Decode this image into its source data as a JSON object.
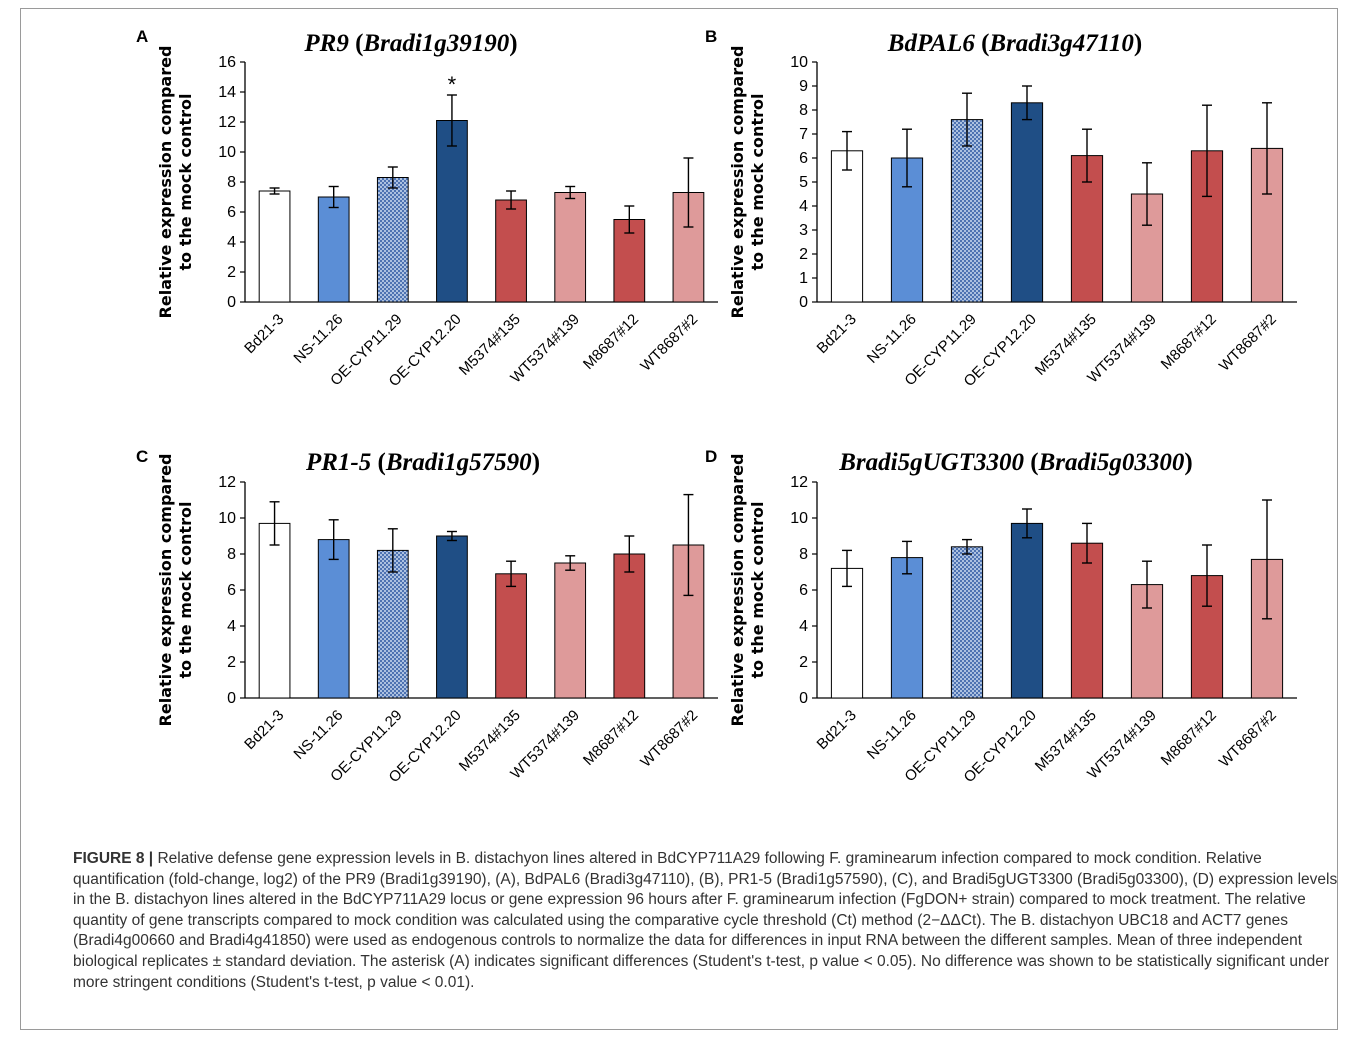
{
  "chart_data": [
    {
      "panel": "A",
      "type": "bar",
      "title_gene": "PR9",
      "title_locus": "Bradi1g39190",
      "ylabel_line1": "Relative expression compared",
      "ylabel_line2": "to the mock control",
      "ylim": [
        0,
        16
      ],
      "ytick_step": 2,
      "categories": [
        "Bd21-3",
        "NS-11.26",
        "OE-CYP11.29",
        "OE-CYP12.20",
        "M5374#135",
        "WT5374#139",
        "M8687#12",
        "WT8687#2"
      ],
      "values": [
        7.4,
        7.0,
        8.3,
        12.1,
        6.8,
        7.3,
        5.5,
        7.3
      ],
      "errors": [
        0.2,
        0.7,
        0.7,
        1.7,
        0.6,
        0.4,
        0.9,
        2.3
      ],
      "annotations": [
        {
          "category": "OE-CYP12.20",
          "text": "*"
        }
      ]
    },
    {
      "panel": "B",
      "type": "bar",
      "title_gene": "BdPAL6",
      "title_locus": "Bradi3g47110",
      "ylabel_line1": "Relative expression compared",
      "ylabel_line2": "to the mock control",
      "ylim": [
        0,
        10
      ],
      "ytick_step": 1,
      "categories": [
        "Bd21-3",
        "NS-11.26",
        "OE-CYP11.29",
        "OE-CYP12.20",
        "M5374#135",
        "WT5374#139",
        "M8687#12",
        "WT8687#2"
      ],
      "values": [
        6.3,
        6.0,
        7.6,
        8.3,
        6.1,
        4.5,
        6.3,
        6.4
      ],
      "errors": [
        0.8,
        1.2,
        1.1,
        0.7,
        1.1,
        1.3,
        1.9,
        1.9
      ],
      "annotations": []
    },
    {
      "panel": "C",
      "type": "bar",
      "title_gene": "PR1-5",
      "title_locus": "Bradi1g57590",
      "ylabel_line1": "Relative expression compared",
      "ylabel_line2": "to the mock control",
      "ylim": [
        0,
        12
      ],
      "ytick_step": 2,
      "categories": [
        "Bd21-3",
        "NS-11.26",
        "OE-CYP11.29",
        "OE-CYP12.20",
        "M5374#135",
        "WT5374#139",
        "M8687#12",
        "WT8687#2"
      ],
      "values": [
        9.7,
        8.8,
        8.2,
        9.0,
        6.9,
        7.5,
        8.0,
        8.5
      ],
      "errors": [
        1.2,
        1.1,
        1.2,
        0.25,
        0.7,
        0.4,
        1.0,
        2.8
      ],
      "annotations": []
    },
    {
      "panel": "D",
      "type": "bar",
      "title_gene": "Bradi5gUGT3300",
      "title_locus": "Bradi5g03300",
      "ylabel_line1": "Relative expression compared",
      "ylabel_line2": "to the mock control",
      "ylim": [
        0,
        12
      ],
      "ytick_step": 2,
      "categories": [
        "Bd21-3",
        "NS-11.26",
        "OE-CYP11.29",
        "OE-CYP12.20",
        "M5374#135",
        "WT5374#139",
        "M8687#12",
        "WT8687#2"
      ],
      "values": [
        7.2,
        7.8,
        8.4,
        9.7,
        8.6,
        6.3,
        6.8,
        7.7
      ],
      "errors": [
        1.0,
        0.9,
        0.4,
        0.8,
        1.1,
        1.3,
        1.7,
        3.3
      ],
      "annotations": []
    }
  ],
  "series_colors": {
    "Bd21-3": "#ffffff",
    "NS-11.26": "#5b8ed6",
    "OE-CYP11.29": "pattern-light-blue-crosshatch",
    "OE-CYP12.20": "#1f4e85",
    "M5374#135": "#c34e4e",
    "WT5374#139": "#de9a9a",
    "M8687#12": "#c34e4e",
    "WT8687#2": "#de9a9a"
  },
  "caption": {
    "label": "FIGURE 8 |",
    "text": " Relative defense gene expression levels in B. distachyon lines altered in BdCYP711A29 following F. graminearum infection compared to mock condition. Relative quantification (fold-change, log2) of the PR9 (Bradi1g39190), (A), BdPAL6 (Bradi3g47110), (B), PR1-5 (Bradi1g57590), (C), and Bradi5gUGT3300 (Bradi5g03300), (D) expression levels in the B. distachyon lines altered in the BdCYP711A29 locus or gene expression 96 hours after F. graminearum infection (FgDON+ strain) compared to mock treatment. The relative quantity of gene transcripts compared to mock condition was calculated using the comparative cycle threshold (Ct) method (2−ΔΔCt). The B. distachyon UBC18 and ACT7 genes (Bradi4g00660 and Bradi4g41850) were used as endogenous controls to normalize the data for differences in input RNA between the different samples. Mean of three independent biological replicates ± standard deviation. The asterisk (A) indicates significant differences (Student's t-test, p value < 0.05). No difference was shown to be statistically significant under more stringent conditions (Student's t-test, p value < 0.01)."
  }
}
